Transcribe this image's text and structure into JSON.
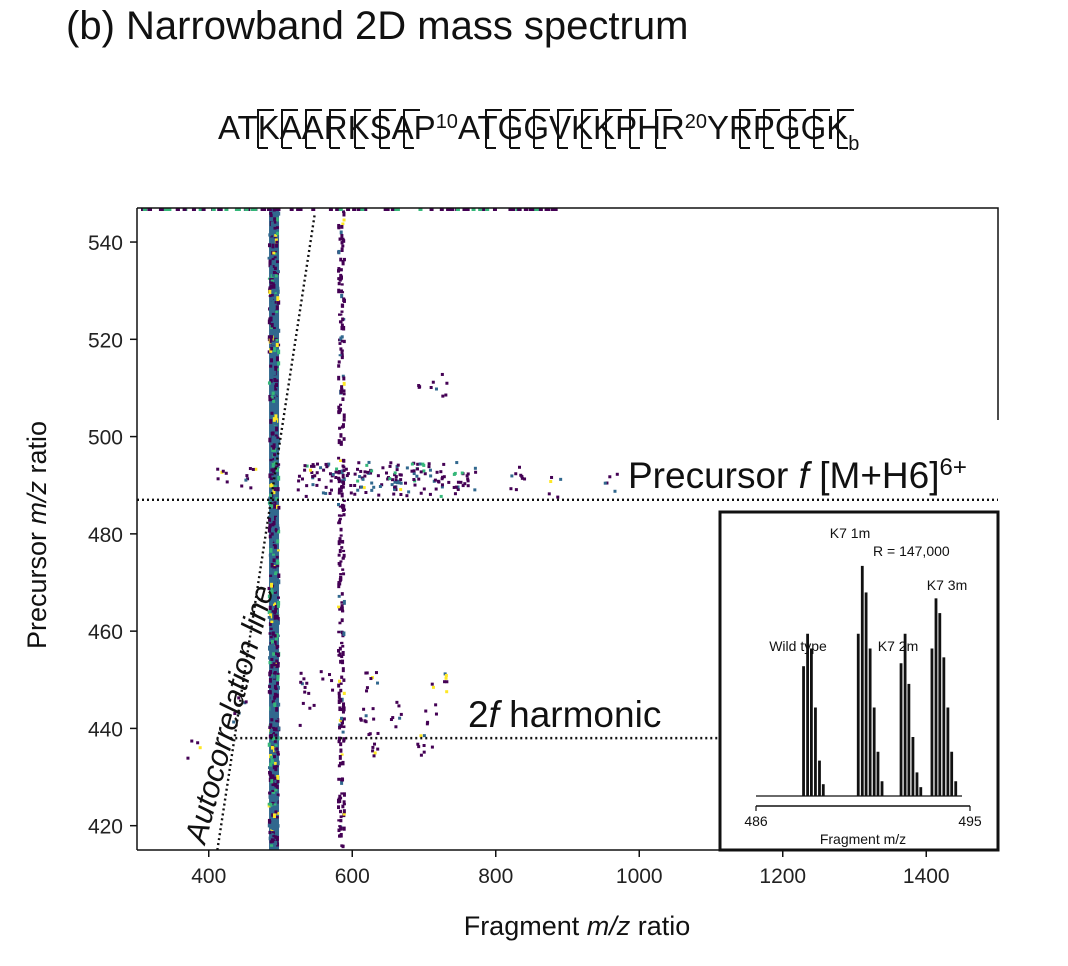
{
  "figure": {
    "title": "(b) Narrowband 2D mass spectrum",
    "sequence_parts": [
      "AT",
      "K",
      "A",
      "A",
      "R",
      "K",
      "S",
      "A",
      "P",
      "10",
      "A",
      "T",
      "G",
      "G",
      "V",
      "K",
      "K",
      "P",
      "H",
      "R",
      "20",
      "Y",
      "R",
      "P",
      "G",
      "G",
      "K",
      "b"
    ]
  },
  "chart_data": [
    {
      "type": "heatmap",
      "title": "(b) Narrowband 2D mass spectrum",
      "xlabel_parts": [
        "Fragment ",
        "m/z",
        " ratio"
      ],
      "ylabel_parts": [
        "Precursor ",
        "m/z",
        " ratio"
      ],
      "xlim": [
        300,
        1500
      ],
      "ylim": [
        415,
        547
      ],
      "x_ticks": [
        "400",
        "600",
        "800",
        "1000",
        "1200",
        "1400"
      ],
      "y_ticks": [
        "420",
        "440",
        "460",
        "480",
        "500",
        "520",
        "540"
      ],
      "colormap": "viridis",
      "vertical_lines": [
        {
          "x": 491,
          "description_values": "intense fragment column"
        },
        {
          "x": 585,
          "description_values": "fragment column"
        }
      ],
      "horizontal_lines": [
        {
          "y": 487,
          "xrange": [
            300,
            1500
          ]
        },
        {
          "y": 438,
          "xrange": [
            430,
            1120
          ]
        }
      ],
      "clusters": [
        {
          "x": 420,
          "y": 492
        },
        {
          "x": 455,
          "y": 492
        },
        {
          "x": 535,
          "y": 492
        },
        {
          "x": 560,
          "y": 492
        },
        {
          "x": 620,
          "y": 492
        },
        {
          "x": 660,
          "y": 492
        },
        {
          "x": 690,
          "y": 492
        },
        {
          "x": 720,
          "y": 492
        },
        {
          "x": 760,
          "y": 492
        },
        {
          "x": 830,
          "y": 492
        },
        {
          "x": 880,
          "y": 490
        },
        {
          "x": 960,
          "y": 490
        },
        {
          "x": 700,
          "y": 513
        },
        {
          "x": 720,
          "y": 511
        },
        {
          "x": 530,
          "y": 450
        },
        {
          "x": 560,
          "y": 450
        },
        {
          "x": 625,
          "y": 450
        },
        {
          "x": 720,
          "y": 450
        },
        {
          "x": 535,
          "y": 443
        },
        {
          "x": 620,
          "y": 443
        },
        {
          "x": 660,
          "y": 443
        },
        {
          "x": 705,
          "y": 443
        },
        {
          "x": 625,
          "y": 437
        },
        {
          "x": 700,
          "y": 437
        },
        {
          "x": 440,
          "y": 444
        },
        {
          "x": 380,
          "y": 436
        }
      ],
      "autocorrelation_line": {
        "points": [
          [
            412,
            415
          ],
          [
            548,
            546
          ]
        ]
      },
      "annotations": [
        {
          "label_parts": [
            "Precursor ",
            "f",
            " [M+H6]",
            "6+"
          ]
        },
        {
          "label_parts": [
            "2",
            "f",
            " harmonic"
          ]
        },
        {
          "label": "Autocorrelation line"
        }
      ]
    },
    {
      "type": "bar",
      "title": "",
      "xlabel": "Fragment m/z",
      "xlim": [
        486,
        495
      ],
      "x_ticks": [
        "486",
        "495"
      ],
      "resolution": "R = 147,000",
      "peak_labels": [
        "Wild type",
        "K7 1m",
        "K7 2m",
        "K7 3m"
      ],
      "groups": [
        {
          "name": "Wild type",
          "x": [
            488.0,
            488.17,
            488.33,
            488.5,
            488.67,
            488.83
          ],
          "values": [
            0.44,
            0.55,
            0.5,
            0.3,
            0.12,
            0.04
          ]
        },
        {
          "name": "K7 1m",
          "x": [
            490.3,
            490.47,
            490.63,
            490.8,
            490.97,
            491.13,
            491.3
          ],
          "values": [
            0.55,
            0.78,
            0.69,
            0.5,
            0.3,
            0.15,
            0.05
          ]
        },
        {
          "name": "K7 2m",
          "x": [
            492.1,
            492.27,
            492.43,
            492.6,
            492.77,
            492.93
          ],
          "values": [
            0.45,
            0.55,
            0.38,
            0.2,
            0.08,
            0.03
          ]
        },
        {
          "name": "K7 3m",
          "x": [
            493.4,
            493.57,
            493.73,
            493.9,
            494.07,
            494.23,
            494.4
          ],
          "values": [
            0.5,
            0.67,
            0.62,
            0.47,
            0.3,
            0.15,
            0.05
          ]
        }
      ]
    }
  ]
}
